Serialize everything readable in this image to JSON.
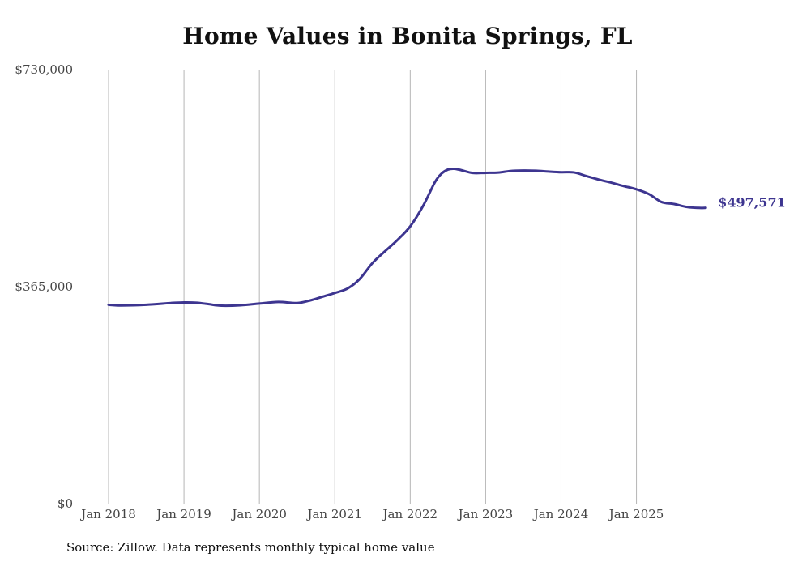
{
  "chart_data": {
    "type": "line",
    "title": "Home Values in Bonita Springs, FL",
    "xlabel": "",
    "ylabel": "",
    "ylim": [
      0,
      730000
    ],
    "x_domain": [
      2018,
      2025.95
    ],
    "y_ticks": [
      {
        "value": 0,
        "label": "$0"
      },
      {
        "value": 365000,
        "label": "$365,000"
      },
      {
        "value": 730000,
        "label": "$730,000"
      }
    ],
    "x_ticks": [
      {
        "value": 2018,
        "label": "Jan 2018"
      },
      {
        "value": 2019,
        "label": "Jan 2019"
      },
      {
        "value": 2020,
        "label": "Jan 2020"
      },
      {
        "value": 2021,
        "label": "Jan 2021"
      },
      {
        "value": 2022,
        "label": "Jan 2022"
      },
      {
        "value": 2023,
        "label": "Jan 2023"
      },
      {
        "value": 2024,
        "label": "Jan 2024"
      },
      {
        "value": 2025,
        "label": "Jan 2025"
      }
    ],
    "series": [
      {
        "name": "Typical home value",
        "color": "#3d3590",
        "end_label": "$497,571",
        "x": [
          2018.0,
          2018.17,
          2018.5,
          2018.83,
          2019.0,
          2019.17,
          2019.33,
          2019.5,
          2019.75,
          2020.0,
          2020.25,
          2020.5,
          2020.67,
          2020.83,
          2021.0,
          2021.17,
          2021.33,
          2021.5,
          2021.67,
          2021.83,
          2022.0,
          2022.17,
          2022.33,
          2022.42,
          2022.5,
          2022.58,
          2022.67,
          2022.83,
          2023.0,
          2023.17,
          2023.33,
          2023.5,
          2023.67,
          2023.83,
          2024.0,
          2024.17,
          2024.33,
          2024.5,
          2024.67,
          2024.83,
          2025.0,
          2025.17,
          2025.33,
          2025.5,
          2025.67,
          2025.83,
          2025.92
        ],
        "values": [
          334500,
          333400,
          334500,
          337500,
          338500,
          338000,
          335500,
          333000,
          333700,
          336500,
          339300,
          337500,
          341700,
          347800,
          354400,
          362000,
          377800,
          404800,
          425100,
          443400,
          466400,
          500700,
          541200,
          555600,
          561900,
          563200,
          561100,
          556100,
          556400,
          556800,
          559500,
          560300,
          559900,
          558600,
          557400,
          557100,
          551200,
          545000,
          539700,
          534200,
          528700,
          520400,
          507400,
          503900,
          498900,
          497400,
          497571
        ]
      }
    ]
  },
  "source": "Source: Zillow. Data represents monthly typical home value"
}
